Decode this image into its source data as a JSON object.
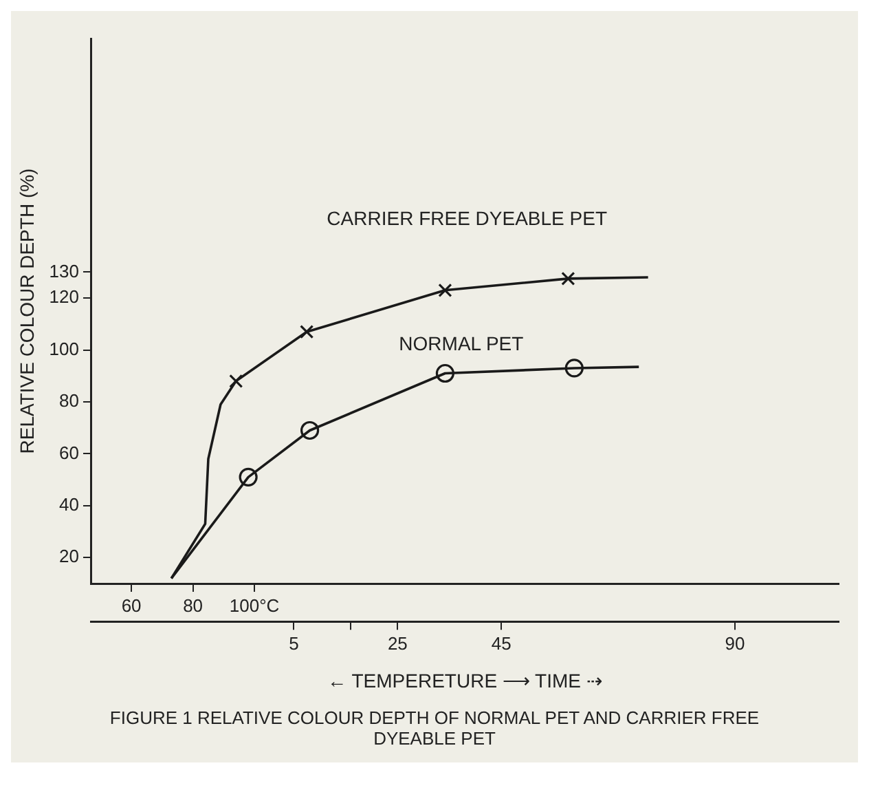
{
  "chart_data": {
    "type": "line",
    "xlabel": "← TEMPERETURE ⟶ TIME ⇢",
    "ylabel": "RELATIVE COLOUR DEPTH (%)",
    "annotations": [
      "FIGURE 1 RELATIVE COLOUR DEPTH OF NORMAL PET AND CARRIER FREE DYEABLE PET"
    ],
    "xlim": [
      47,
      290
    ],
    "xticks": [
      60,
      80,
      {
        "value": 100,
        "label": "100°C"
      }
    ],
    "x2lim": [
      -34,
      110
    ],
    "x2ticks": [
      5,
      {
        "value": 16,
        "label": null
      },
      25,
      45,
      90
    ],
    "ylim": [
      10,
      220
    ],
    "yticks": [
      20,
      40,
      60,
      80,
      100,
      120,
      130
    ],
    "grid": false,
    "legend": false,
    "series": [
      {
        "name": "CARRIER FREE DYEABLE PET",
        "type": "line",
        "marker": "none",
        "color": "#1a1a1a",
        "x": [
          73,
          84,
          85,
          89,
          94,
          117,
          162,
          202,
          228
        ],
        "values": [
          12,
          33,
          58,
          79,
          88,
          107,
          123,
          127.5,
          128
        ]
      },
      {
        "type": "scatter",
        "marker": "cross",
        "color": "#1a1a1a",
        "x": [
          94,
          117,
          162,
          202
        ],
        "values": [
          88,
          107,
          123,
          127.5
        ]
      },
      {
        "name": "NORMAL PET",
        "type": "line",
        "marker": "none",
        "color": "#1a1a1a",
        "x": [
          73,
          98,
          118,
          162,
          204,
          225
        ],
        "values": [
          12,
          51,
          69,
          91,
          93,
          93.5
        ]
      },
      {
        "type": "scatter",
        "marker": "circle",
        "color": "#1a1a1a",
        "x": [
          98,
          118,
          162,
          204
        ],
        "values": [
          51,
          69,
          91,
          93
        ]
      }
    ]
  }
}
